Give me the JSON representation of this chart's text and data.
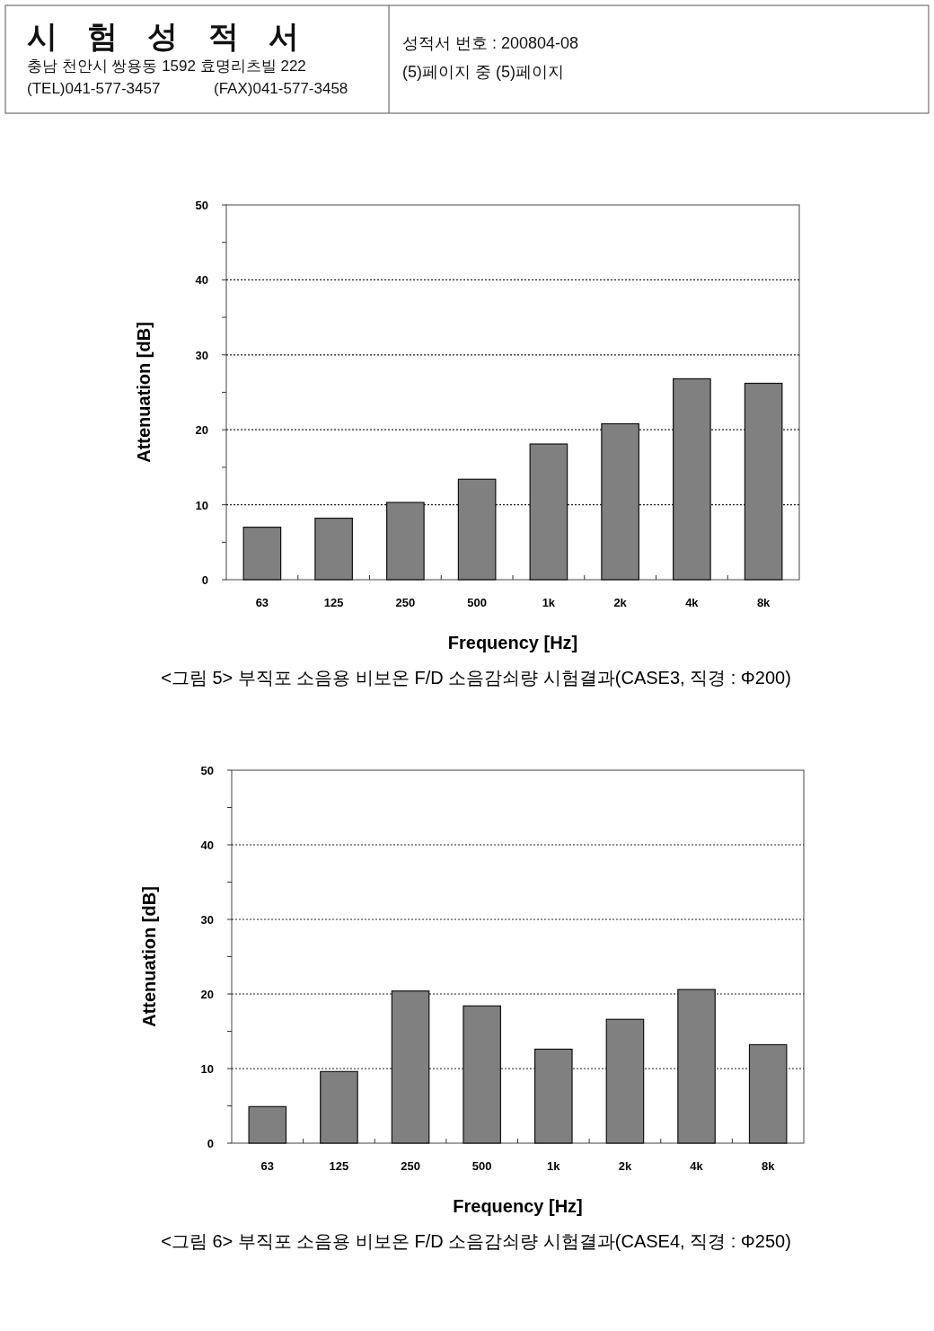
{
  "chart_data": [
    {
      "type": "other",
      "annotations": [
        "시 험 성 적 서",
        "충남 천안시 쌍용동 1592 효명리츠빌 222",
        "(TEL)041-577-3457",
        "(FAX)041-577-3458",
        "성적서 번호 : 200804-08",
        "(5)페이지  중  (5)페이지"
      ]
    },
    {
      "type": "bar",
      "categories": [
        "63",
        "125",
        "250",
        "500",
        "1k",
        "2k",
        "4k",
        "8k"
      ],
      "values": [
        7.0,
        8.2,
        10.3,
        13.4,
        18.1,
        20.8,
        26.8,
        26.2
      ],
      "color": "#808080",
      "xlabel": "Frequency [Hz]",
      "ylabel": "Attenuation [dB]",
      "ylim": [
        0,
        50
      ],
      "yticks": [
        0,
        {
          "value": 5,
          "label": null
        },
        10,
        {
          "value": 15,
          "label": null
        },
        20,
        {
          "value": 25,
          "label": null
        },
        30,
        {
          "value": 35,
          "label": null
        },
        40,
        {
          "value": 45,
          "label": null
        },
        50
      ],
      "grid": "y",
      "annotations": [
        "<그림 5> 부직포 소음용 비보온 F/D 소음감쇠량 시험결과(CASE3, 직경 : Φ200)"
      ]
    },
    {
      "type": "bar",
      "categories": [
        "63",
        "125",
        "250",
        "500",
        "1k",
        "2k",
        "4k",
        "8k"
      ],
      "values": [
        4.9,
        9.6,
        20.4,
        18.4,
        12.6,
        16.6,
        20.6,
        13.2
      ],
      "color": "#808080",
      "xlabel": "Frequency [Hz]",
      "ylabel": "Attenuation [dB]",
      "ylim": [
        0,
        50
      ],
      "yticks": [
        0,
        {
          "value": 5,
          "label": null
        },
        10,
        {
          "value": 15,
          "label": null
        },
        20,
        {
          "value": 25,
          "label": null
        },
        30,
        {
          "value": 35,
          "label": null
        },
        40,
        {
          "value": 45,
          "label": null
        },
        50
      ],
      "grid": "y",
      "annotations": [
        "<그림 6> 부직포 소음용 비보온 F/D 소음감쇠량 시험결과(CASE4, 직경 : Φ250)"
      ]
    }
  ]
}
